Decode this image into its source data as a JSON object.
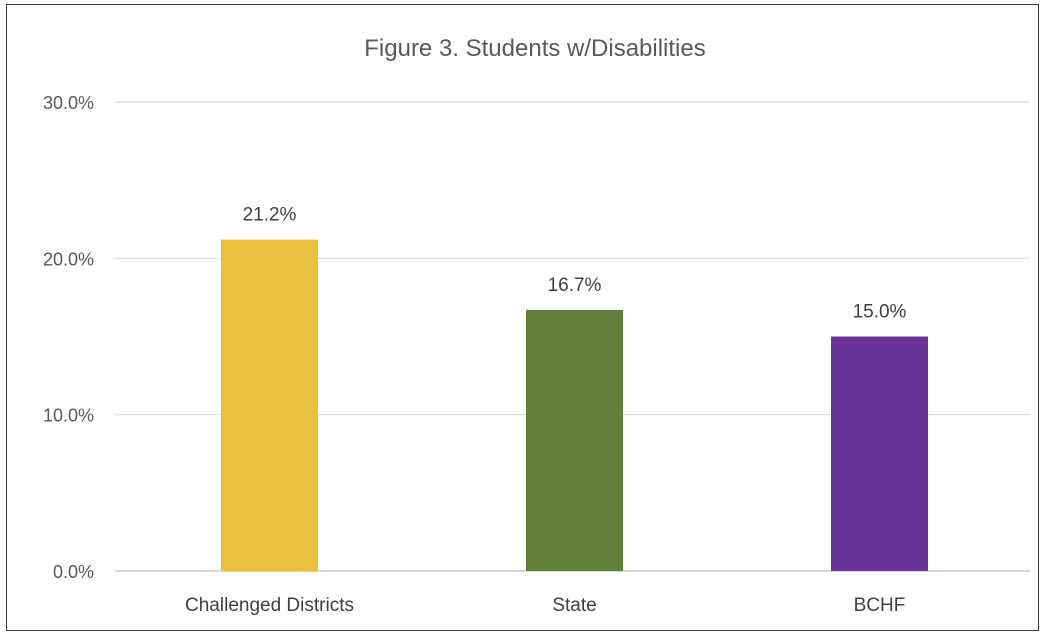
{
  "chart_data": {
    "type": "bar",
    "title": "Figure 3. Students w/Disabilities",
    "categories": [
      "Challenged Districts",
      "State",
      "BCHF"
    ],
    "values": [
      21.2,
      16.7,
      15.0
    ],
    "data_labels": [
      "21.2%",
      "16.7%",
      "15.0%"
    ],
    "colors": [
      "#ECC03F",
      "#5F7F3B",
      "#6A3596"
    ],
    "xlabel": "",
    "ylabel": "",
    "ylim": [
      0,
      30
    ],
    "yticks": [
      0,
      10,
      20,
      30
    ],
    "ytick_labels": [
      "0.0%",
      "10.0%",
      "20.0%",
      "30.0%"
    ],
    "grid": true,
    "legend": "none"
  }
}
